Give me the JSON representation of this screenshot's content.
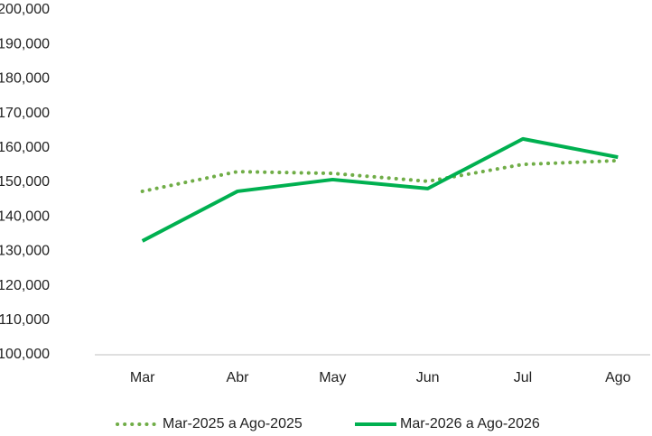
{
  "chart_data": {
    "type": "line",
    "categories": [
      "Mar",
      "Abr",
      "May",
      "Jun",
      "Jul",
      "Ago"
    ],
    "series": [
      {
        "name": "Mar-2025 a Ago-2025",
        "color": "#70ad47",
        "dash": "dotted",
        "values": [
          147400,
          153100,
          152600,
          150300,
          155200,
          156300
        ]
      },
      {
        "name": "Mar-2026 a Ago-2026",
        "color": "#00b050",
        "dash": "solid",
        "values": [
          133000,
          147400,
          150800,
          148200,
          162600,
          157300
        ]
      }
    ],
    "ylim": [
      100000,
      200000
    ],
    "yticks": [
      {
        "value": 100000,
        "label": "100,000"
      },
      {
        "value": 110000,
        "label": "110,000"
      },
      {
        "value": 120000,
        "label": "120,000"
      },
      {
        "value": 130000,
        "label": "130,000"
      },
      {
        "value": 140000,
        "label": "140,000"
      },
      {
        "value": 150000,
        "label": "150,000"
      },
      {
        "value": 160000,
        "label": "160,000"
      },
      {
        "value": 170000,
        "label": "170,000"
      },
      {
        "value": 180000,
        "label": "180,000"
      },
      {
        "value": 190000,
        "label": "190,000"
      },
      {
        "value": 200000,
        "label": "200,000"
      }
    ],
    "grid": false,
    "legend": "bottom"
  }
}
